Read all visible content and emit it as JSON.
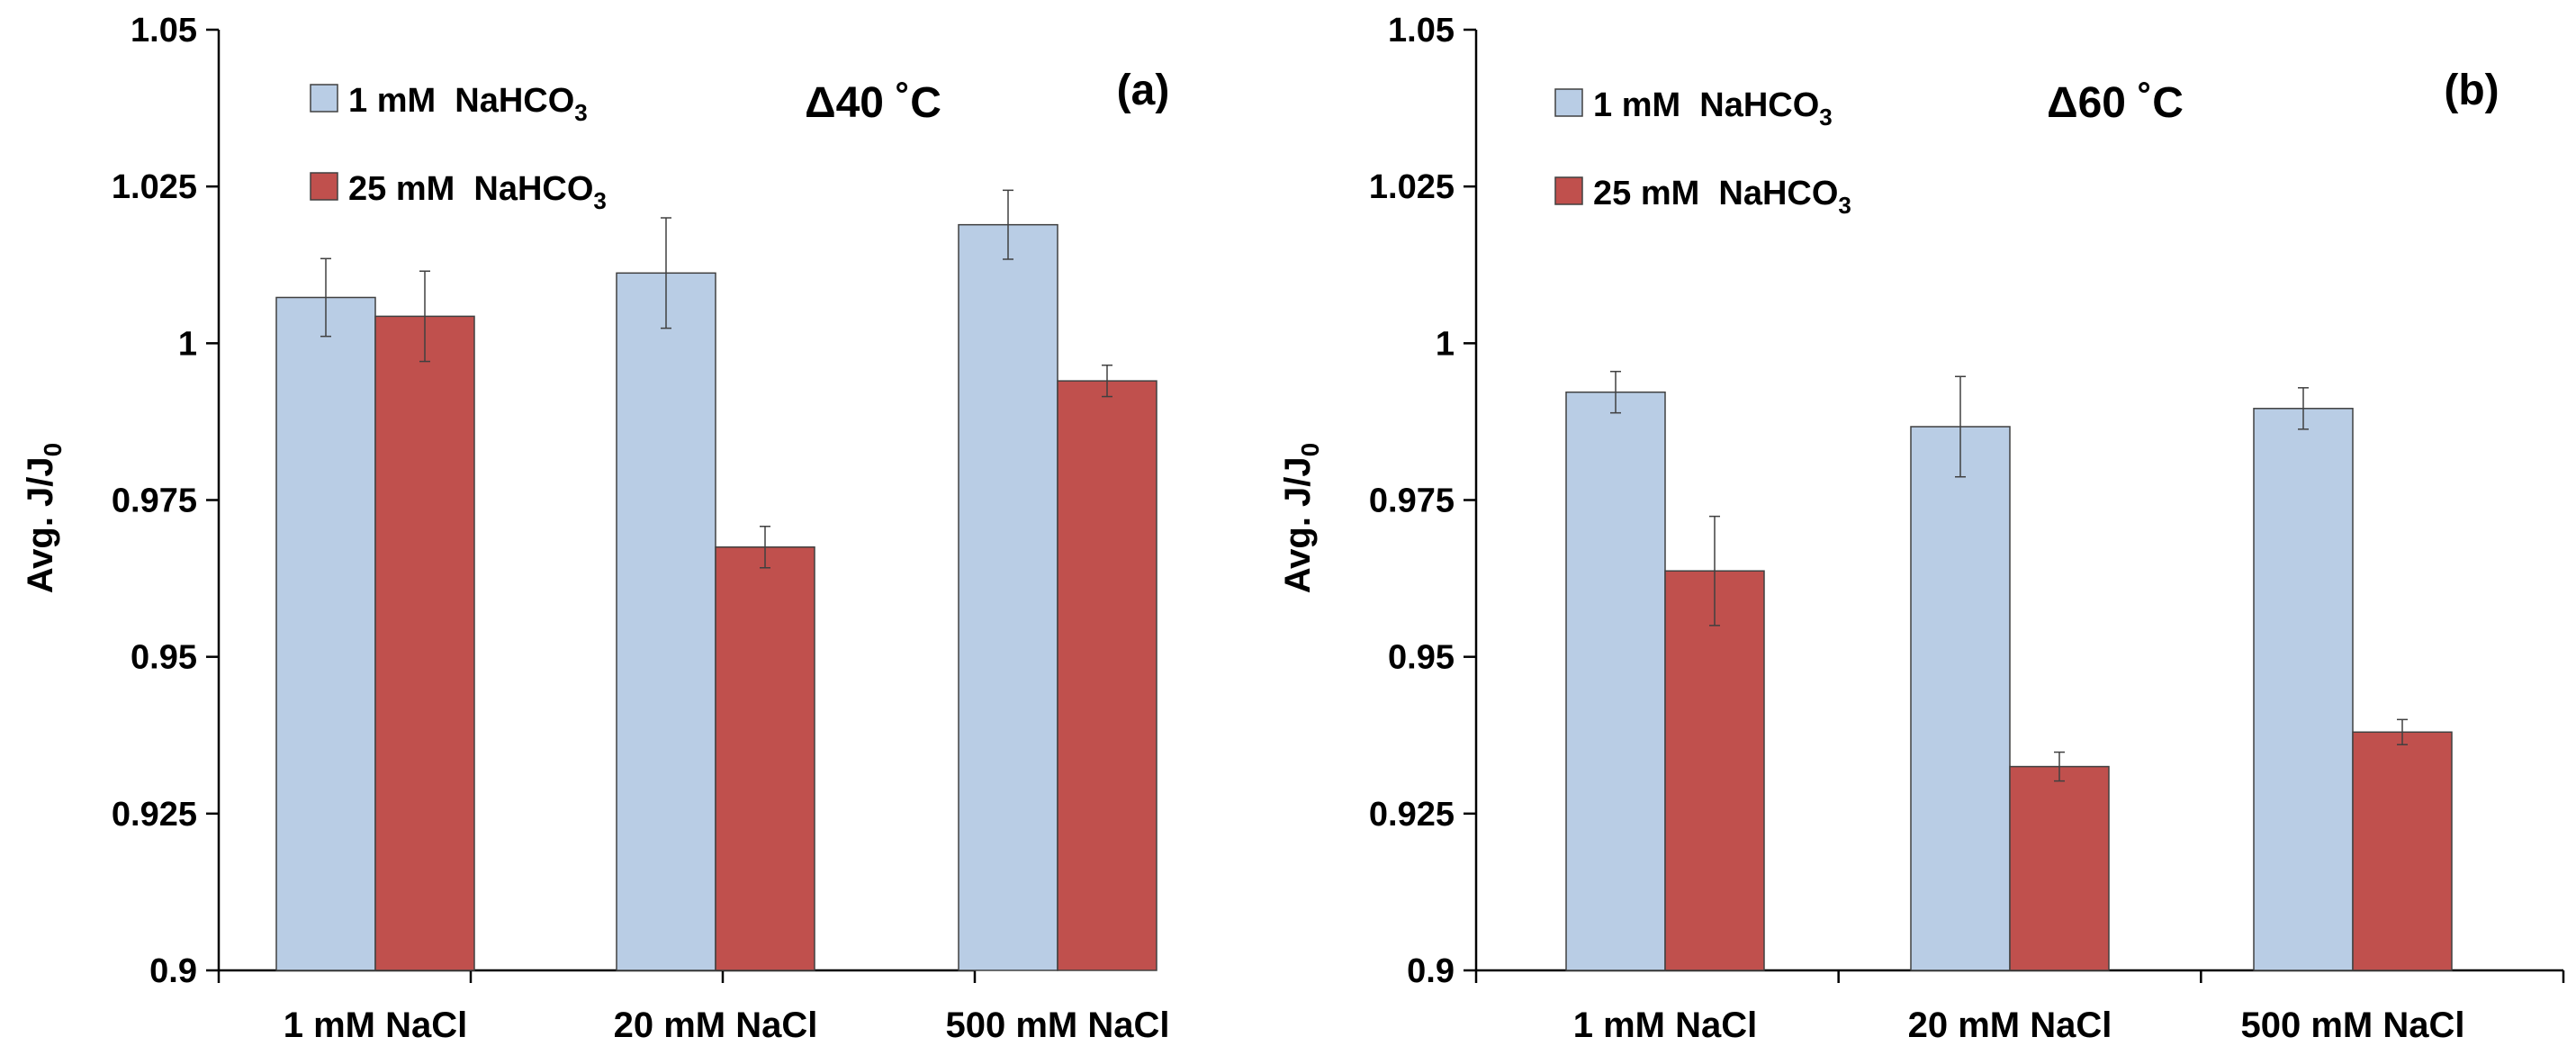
{
  "chart_data": [
    {
      "type": "bar",
      "panel_label": "(a)",
      "annotation": "Δ40 ˚C",
      "ylabel": "Avg. J/J",
      "ylabel_sub": "0",
      "xlabel": "",
      "ylim": [
        0.9,
        1.05
      ],
      "yticks": [
        "0.9",
        "0.925",
        "0.95",
        "0.975",
        "1",
        "1.025",
        "1.05"
      ],
      "categories": [
        "1 mM NaCl",
        "20 mM NaCl",
        "500 mM NaCl"
      ],
      "legend_position": "top-left",
      "series": [
        {
          "name": "1 mM  NaHCO",
          "name_sub": "3",
          "color": "#b9cde5",
          "values": [
            1.0073,
            1.0112,
            1.0189
          ],
          "errors": [
            0.0062,
            0.0088,
            0.0055
          ]
        },
        {
          "name": "25 mM  NaHCO",
          "name_sub": "3",
          "color": "#c0504d",
          "values": [
            1.0043,
            0.9675,
            0.994
          ],
          "errors": [
            0.0072,
            0.0033,
            0.0025
          ]
        }
      ]
    },
    {
      "type": "bar",
      "panel_label": "(b)",
      "annotation": "Δ60 ˚C",
      "ylabel": "Avg. J/J",
      "ylabel_sub": "0",
      "xlabel": "",
      "ylim": [
        0.9,
        1.05
      ],
      "yticks": [
        "0.9",
        "0.925",
        "0.95",
        "0.975",
        "1",
        "1.025",
        "1.05"
      ],
      "categories": [
        "1 mM NaCl",
        "20 mM NaCl",
        "500 mM NaCl"
      ],
      "legend_position": "top-left",
      "series": [
        {
          "name": "1 mM  NaHCO",
          "name_sub": "3",
          "color": "#b9cde5",
          "values": [
            0.9922,
            0.9867,
            0.9896
          ],
          "errors": [
            0.0033,
            0.008,
            0.0033
          ]
        },
        {
          "name": "25 mM  NaHCO",
          "name_sub": "3",
          "color": "#c0504d",
          "values": [
            0.9637,
            0.9325,
            0.938
          ],
          "errors": [
            0.0087,
            0.0023,
            0.002
          ]
        }
      ]
    }
  ]
}
